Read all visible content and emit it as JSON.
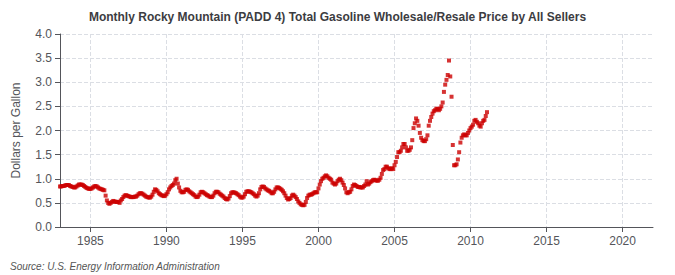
{
  "chart_data": {
    "type": "scatter",
    "title": "Monthly Rocky Mountain (PADD 4) Total Gasoline Wholesale/Resale Price by All Sellers",
    "ylabel": "Dollars per Gallon",
    "annotations": [
      "Source: U.S. Energy Information Administration"
    ],
    "color": "#cc0000",
    "marker": "square",
    "grid": true,
    "xlim": [
      1983,
      2022
    ],
    "xticks": [
      1985,
      1990,
      1995,
      2000,
      2005,
      2010,
      2015,
      2020
    ],
    "ylim": [
      0.0,
      4.0
    ],
    "yticks": [
      {
        "value": 0.0,
        "label": "0.0"
      },
      0.5,
      {
        "value": 1.0,
        "label": "1.0"
      },
      1.5,
      {
        "value": 2.0,
        "label": "2.0"
      },
      2.5,
      {
        "value": 3.0,
        "label": "3.0"
      },
      3.5,
      {
        "value": 4.0,
        "label": "4.0"
      }
    ],
    "x": [
      1983.0,
      1983.083,
      1983.167,
      1983.25,
      1983.333,
      1983.417,
      1983.5,
      1983.583,
      1983.667,
      1983.75,
      1983.833,
      1983.917,
      1984.0,
      1984.083,
      1984.167,
      1984.25,
      1984.333,
      1984.417,
      1984.5,
      1984.583,
      1984.667,
      1984.75,
      1984.833,
      1984.917,
      1985.0,
      1985.083,
      1985.167,
      1985.25,
      1985.333,
      1985.417,
      1985.5,
      1985.583,
      1985.667,
      1985.75,
      1985.833,
      1985.917,
      1986.0,
      1986.083,
      1986.167,
      1986.25,
      1986.333,
      1986.417,
      1986.5,
      1986.583,
      1986.667,
      1986.75,
      1986.833,
      1986.917,
      1987.0,
      1987.083,
      1987.167,
      1987.25,
      1987.333,
      1987.417,
      1987.5,
      1987.583,
      1987.667,
      1987.75,
      1987.833,
      1987.917,
      1988.0,
      1988.083,
      1988.167,
      1988.25,
      1988.333,
      1988.417,
      1988.5,
      1988.583,
      1988.667,
      1988.75,
      1988.833,
      1988.917,
      1989.0,
      1989.083,
      1989.167,
      1989.25,
      1989.333,
      1989.417,
      1989.5,
      1989.583,
      1989.667,
      1989.75,
      1989.833,
      1989.917,
      1990.0,
      1990.083,
      1990.167,
      1990.25,
      1990.333,
      1990.417,
      1990.5,
      1990.583,
      1990.667,
      1990.75,
      1990.833,
      1990.917,
      1991.0,
      1991.083,
      1991.167,
      1991.25,
      1991.333,
      1991.417,
      1991.5,
      1991.583,
      1991.667,
      1991.75,
      1991.833,
      1991.917,
      1992.0,
      1992.083,
      1992.167,
      1992.25,
      1992.333,
      1992.417,
      1992.5,
      1992.583,
      1992.667,
      1992.75,
      1992.833,
      1992.917,
      1993.0,
      1993.083,
      1993.167,
      1993.25,
      1993.333,
      1993.417,
      1993.5,
      1993.583,
      1993.667,
      1993.75,
      1993.833,
      1993.917,
      1994.0,
      1994.083,
      1994.167,
      1994.25,
      1994.333,
      1994.417,
      1994.5,
      1994.583,
      1994.667,
      1994.75,
      1994.833,
      1994.917,
      1995.0,
      1995.083,
      1995.167,
      1995.25,
      1995.333,
      1995.417,
      1995.5,
      1995.583,
      1995.667,
      1995.75,
      1995.833,
      1995.917,
      1996.0,
      1996.083,
      1996.167,
      1996.25,
      1996.333,
      1996.417,
      1996.5,
      1996.583,
      1996.667,
      1996.75,
      1996.833,
      1996.917,
      1997.0,
      1997.083,
      1997.167,
      1997.25,
      1997.333,
      1997.417,
      1997.5,
      1997.583,
      1997.667,
      1997.75,
      1997.833,
      1997.917,
      1998.0,
      1998.083,
      1998.167,
      1998.25,
      1998.333,
      1998.417,
      1998.5,
      1998.583,
      1998.667,
      1998.75,
      1998.833,
      1998.917,
      1999.0,
      1999.083,
      1999.167,
      1999.25,
      1999.333,
      1999.417,
      1999.5,
      1999.583,
      1999.667,
      1999.75,
      1999.833,
      1999.917,
      2000.0,
      2000.083,
      2000.167,
      2000.25,
      2000.333,
      2000.417,
      2000.5,
      2000.583,
      2000.667,
      2000.75,
      2000.833,
      2000.917,
      2001.0,
      2001.083,
      2001.167,
      2001.25,
      2001.333,
      2001.417,
      2001.5,
      2001.583,
      2001.667,
      2001.75,
      2001.833,
      2001.917,
      2002.0,
      2002.083,
      2002.167,
      2002.25,
      2002.333,
      2002.417,
      2002.5,
      2002.583,
      2002.667,
      2002.75,
      2002.833,
      2002.917,
      2003.0,
      2003.083,
      2003.167,
      2003.25,
      2003.333,
      2003.417,
      2003.5,
      2003.583,
      2003.667,
      2003.75,
      2003.833,
      2003.917,
      2004.0,
      2004.083,
      2004.167,
      2004.25,
      2004.333,
      2004.417,
      2004.5,
      2004.583,
      2004.667,
      2004.75,
      2004.833,
      2004.917,
      2005.0,
      2005.083,
      2005.167,
      2005.25,
      2005.333,
      2005.417,
      2005.5,
      2005.583,
      2005.667,
      2005.75,
      2005.833,
      2005.917,
      2006.0,
      2006.083,
      2006.167,
      2006.25,
      2006.333,
      2006.417,
      2006.5,
      2006.583,
      2006.667,
      2006.75,
      2006.833,
      2006.917,
      2007.0,
      2007.083,
      2007.167,
      2007.25,
      2007.333,
      2007.417,
      2007.5,
      2007.583,
      2007.667,
      2007.75,
      2007.833,
      2007.917,
      2008.0,
      2008.083,
      2008.167,
      2008.25,
      2008.333,
      2008.417,
      2008.5,
      2008.583,
      2008.667,
      2008.75,
      2008.833,
      2008.917,
      2009.0,
      2009.083,
      2009.167,
      2009.25,
      2009.333,
      2009.417,
      2009.5,
      2009.583,
      2009.667,
      2009.75,
      2009.833,
      2009.917,
      2010.0,
      2010.083,
      2010.167,
      2010.25,
      2010.333,
      2010.417,
      2010.5,
      2010.583,
      2010.667,
      2010.75,
      2010.833,
      2010.917,
      2011.0,
      2011.083
    ],
    "values": [
      0.84,
      0.84,
      0.85,
      0.85,
      0.86,
      0.87,
      0.87,
      0.87,
      0.85,
      0.84,
      0.83,
      0.82,
      0.82,
      0.84,
      0.86,
      0.88,
      0.88,
      0.88,
      0.87,
      0.85,
      0.83,
      0.81,
      0.8,
      0.79,
      0.79,
      0.8,
      0.82,
      0.84,
      0.85,
      0.84,
      0.82,
      0.8,
      0.79,
      0.78,
      0.77,
      0.76,
      0.65,
      0.55,
      0.5,
      0.48,
      0.5,
      0.52,
      0.54,
      0.53,
      0.52,
      0.52,
      0.52,
      0.5,
      0.55,
      0.58,
      0.62,
      0.65,
      0.66,
      0.65,
      0.64,
      0.63,
      0.62,
      0.62,
      0.62,
      0.63,
      0.63,
      0.65,
      0.68,
      0.7,
      0.7,
      0.69,
      0.67,
      0.65,
      0.63,
      0.62,
      0.61,
      0.61,
      0.63,
      0.67,
      0.73,
      0.78,
      0.77,
      0.74,
      0.7,
      0.68,
      0.66,
      0.65,
      0.64,
      0.65,
      0.68,
      0.72,
      0.78,
      0.82,
      0.85,
      0.87,
      0.9,
      0.97,
      1.0,
      0.9,
      0.82,
      0.75,
      0.72,
      0.72,
      0.73,
      0.77,
      0.78,
      0.77,
      0.74,
      0.72,
      0.7,
      0.68,
      0.66,
      0.63,
      0.62,
      0.63,
      0.67,
      0.72,
      0.73,
      0.72,
      0.7,
      0.68,
      0.66,
      0.65,
      0.63,
      0.62,
      0.62,
      0.65,
      0.7,
      0.73,
      0.73,
      0.72,
      0.69,
      0.67,
      0.65,
      0.63,
      0.6,
      0.58,
      0.57,
      0.59,
      0.64,
      0.7,
      0.72,
      0.72,
      0.71,
      0.7,
      0.68,
      0.66,
      0.63,
      0.61,
      0.61,
      0.63,
      0.68,
      0.73,
      0.74,
      0.74,
      0.73,
      0.72,
      0.7,
      0.68,
      0.65,
      0.63,
      0.65,
      0.7,
      0.78,
      0.83,
      0.84,
      0.83,
      0.8,
      0.78,
      0.76,
      0.75,
      0.73,
      0.7,
      0.7,
      0.73,
      0.78,
      0.82,
      0.82,
      0.81,
      0.79,
      0.77,
      0.74,
      0.7,
      0.65,
      0.6,
      0.57,
      0.58,
      0.6,
      0.65,
      0.67,
      0.65,
      0.62,
      0.58,
      0.53,
      0.5,
      0.47,
      0.46,
      0.45,
      0.46,
      0.52,
      0.6,
      0.65,
      0.67,
      0.67,
      0.68,
      0.7,
      0.72,
      0.72,
      0.72,
      0.8,
      0.88,
      0.95,
      1.0,
      1.02,
      1.05,
      1.07,
      1.05,
      1.02,
      1.0,
      0.98,
      0.92,
      0.9,
      0.88,
      0.9,
      0.95,
      0.98,
      1.0,
      0.97,
      0.92,
      0.87,
      0.8,
      0.72,
      0.7,
      0.72,
      0.73,
      0.78,
      0.85,
      0.88,
      0.87,
      0.85,
      0.83,
      0.83,
      0.82,
      0.82,
      0.82,
      0.85,
      0.88,
      0.95,
      0.88,
      0.9,
      0.93,
      0.95,
      0.97,
      0.98,
      0.97,
      0.96,
      0.96,
      0.98,
      1.02,
      1.1,
      1.18,
      1.2,
      1.25,
      1.25,
      1.22,
      1.2,
      1.2,
      1.22,
      1.2,
      1.28,
      1.35,
      1.45,
      1.55,
      1.55,
      1.58,
      1.65,
      1.72,
      1.72,
      1.65,
      1.58,
      1.58,
      1.6,
      1.65,
      1.8,
      2.05,
      2.15,
      2.25,
      2.2,
      2.1,
      1.95,
      1.85,
      1.8,
      1.78,
      1.78,
      1.82,
      1.9,
      2.1,
      2.2,
      2.28,
      2.35,
      2.4,
      2.42,
      2.45,
      2.45,
      2.42,
      2.45,
      2.5,
      2.58,
      2.8,
      2.95,
      3.05,
      3.15,
      3.45,
      3.12,
      2.7,
      1.7,
      1.28,
      1.28,
      1.3,
      1.4,
      1.55,
      1.75,
      1.85,
      1.9,
      1.92,
      1.9,
      1.9,
      1.95,
      2.0,
      2.05,
      2.08,
      2.12,
      2.2,
      2.22,
      2.18,
      2.15,
      2.1,
      2.08,
      2.15,
      2.2,
      2.22,
      2.3,
      2.38
    ]
  }
}
